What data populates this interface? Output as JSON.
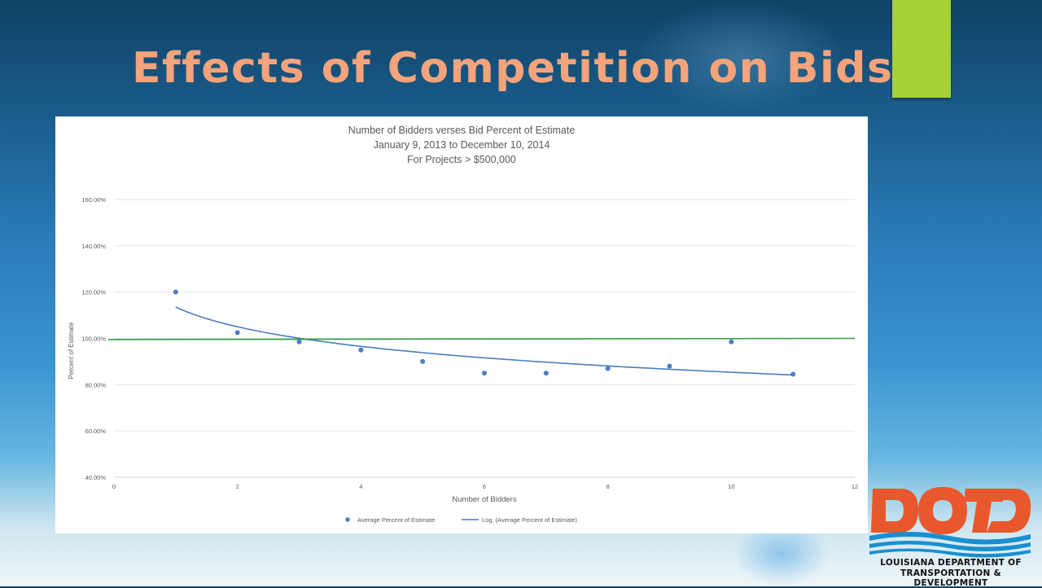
{
  "slide": {
    "title": "Effects of Competition on Bids"
  },
  "colors": {
    "title": "#f4a37a",
    "accent_bar": "#a6cf38",
    "points": "#4a7fbf",
    "trendline": "#4a7fbf",
    "reference_line": "#2e9e4a",
    "logo_orange": "#e8582c",
    "logo_blue": "#1a8fd0"
  },
  "chart_data": {
    "type": "scatter",
    "title_lines": [
      "Number of Bidders verses Bid Percent of Estimate",
      "January 9, 2013 to December 10, 2014",
      "For Projects > $500,000"
    ],
    "xlabel": "Number of Bidders",
    "ylabel": "Percent of Estimate",
    "xlim": [
      0,
      12
    ],
    "ylim": [
      40,
      160
    ],
    "x_ticks": [
      0,
      2,
      4,
      6,
      8,
      10,
      12
    ],
    "y_ticks": [
      40,
      60,
      80,
      100,
      120,
      140,
      160
    ],
    "y_tick_labels": [
      "40.00%",
      "60.00%",
      "80.00%",
      "100.00%",
      "120.00%",
      "140.00%",
      "160.00%"
    ],
    "grid": "horizontal",
    "legend_position": "bottom",
    "series": [
      {
        "name": "Average Percent of Estimate",
        "kind": "points",
        "x": [
          1,
          2,
          3,
          4,
          5,
          6,
          7,
          8,
          9,
          10,
          11
        ],
        "y": [
          120.0,
          102.5,
          98.5,
          95.0,
          90.0,
          85.0,
          85.0,
          87.0,
          88.0,
          98.5,
          84.5
        ]
      },
      {
        "name": "Log. (Average Percent of Estimate)",
        "kind": "log_trendline",
        "x_range": [
          1,
          11
        ],
        "y_at_1": 113.5,
        "y_at_11": 84.2
      },
      {
        "kind": "reference_line",
        "y_start": 99.5,
        "y_end": 100.0
      }
    ]
  },
  "logo": {
    "wordmark": "DOTD",
    "line1": "LOUISIANA DEPARTMENT OF",
    "line2": "TRANSPORTATION & DEVELOPMENT"
  }
}
